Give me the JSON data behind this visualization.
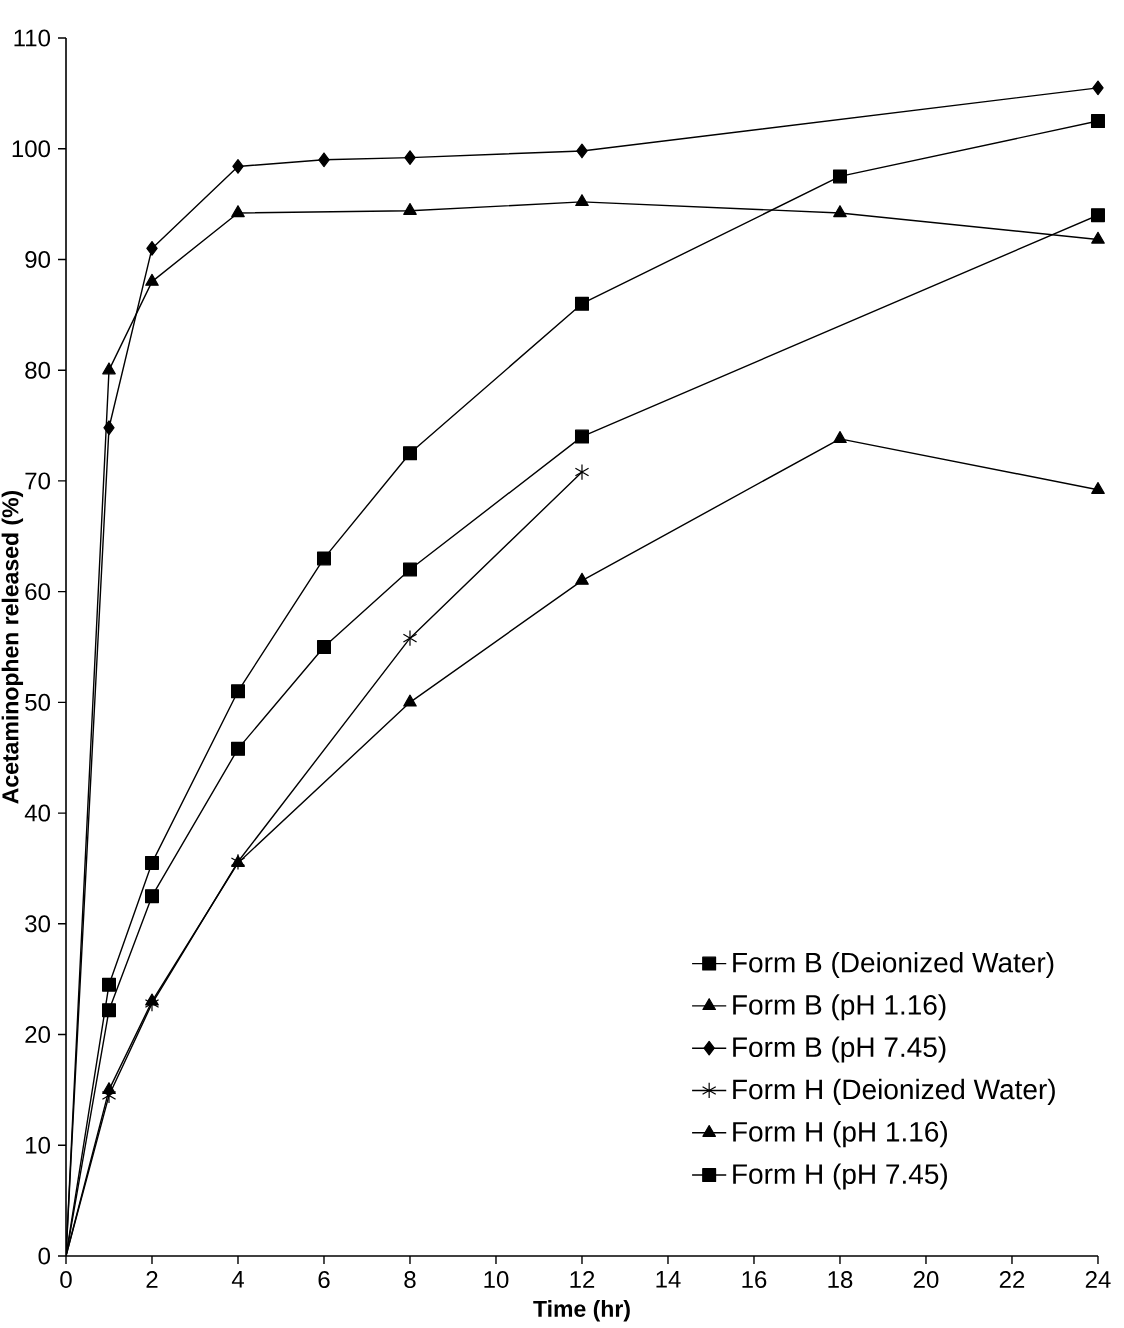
{
  "chart_data": {
    "type": "line",
    "xlabel": "Time (hr)",
    "ylabel": "Acetaminophen released (%)",
    "xlim": [
      0,
      24
    ],
    "xticks": [
      0,
      2,
      4,
      6,
      8,
      10,
      12,
      14,
      16,
      18,
      20,
      22,
      24
    ],
    "ylim": [
      0,
      110
    ],
    "yticks": [
      0,
      10,
      20,
      30,
      40,
      50,
      60,
      70,
      80,
      90,
      100,
      110
    ],
    "grid": false,
    "legend": "bottom right",
    "line_style": "solid",
    "series": [
      {
        "name": "Form B (Deionized Water)",
        "color": "#000000",
        "marker": "square",
        "x": [
          0,
          1,
          2,
          4,
          6,
          8,
          12,
          18,
          24
        ],
        "values": [
          0,
          24.5,
          35.5,
          51,
          63,
          72.5,
          86,
          97.5,
          102.5
        ]
      },
      {
        "name": "Form B (pH 1.16)",
        "color": "#000000",
        "marker": "triangle",
        "x": [
          0,
          1,
          2,
          4,
          8,
          12,
          18,
          24
        ],
        "values": [
          0,
          80,
          88,
          94.2,
          94.4,
          95.2,
          94.2,
          91.8
        ]
      },
      {
        "name": "Form B (pH 7.45)",
        "color": "#000000",
        "marker": "diamond",
        "x": [
          0,
          1,
          2,
          4,
          6,
          8,
          12,
          24
        ],
        "values": [
          0,
          74.8,
          91,
          98.4,
          99,
          99.2,
          99.8,
          105.5
        ]
      },
      {
        "name": "Form H (Deionized Water)",
        "color": "#000000",
        "marker": "cross",
        "x": [
          0,
          1,
          2,
          4,
          8,
          12
        ],
        "values": [
          0,
          14.5,
          22.8,
          35.6,
          55.8,
          70.8
        ]
      },
      {
        "name": "Form H (pH 1.16)",
        "color": "#000000",
        "marker": "triangle",
        "x": [
          0,
          1,
          2,
          4,
          8,
          12,
          18,
          24
        ],
        "values": [
          0,
          15,
          23,
          35.5,
          50,
          61,
          73.8,
          69.2
        ]
      },
      {
        "name": "Form H (pH 7.45)",
        "color": "#000000",
        "marker": "square",
        "x": [
          0,
          1,
          2,
          4,
          6,
          8,
          12,
          24
        ],
        "values": [
          0,
          22.2,
          32.5,
          45.8,
          55,
          62,
          74,
          94
        ]
      }
    ]
  }
}
